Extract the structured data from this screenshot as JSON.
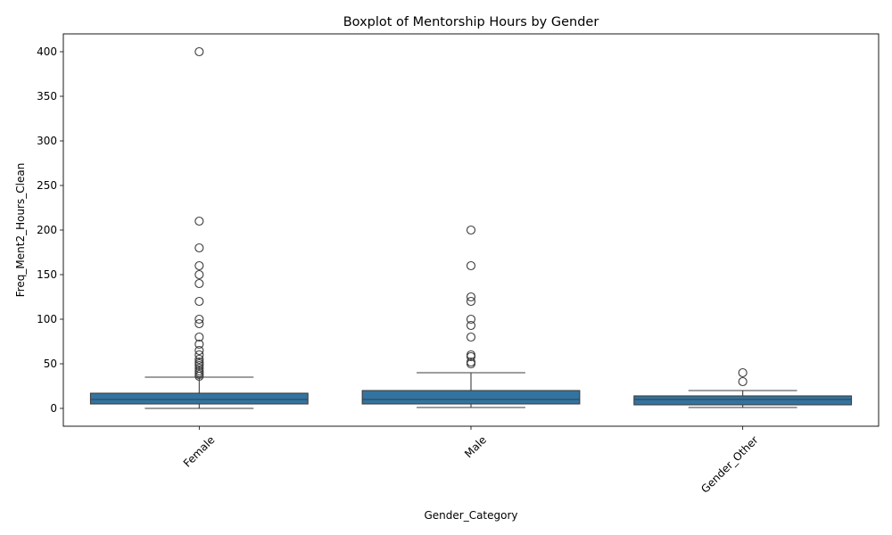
{
  "chart_data": {
    "type": "boxplot",
    "title": "Boxplot of Mentorship Hours by Gender",
    "xlabel": "Gender_Category",
    "ylabel": "Freq_Ment2_Hours_Clean",
    "ylim": [
      -20,
      420
    ],
    "yticks": [
      0,
      50,
      100,
      150,
      200,
      250,
      300,
      350,
      400
    ],
    "box_color": "#3274a1",
    "categories": [
      "Female",
      "Male",
      "Gender_Other"
    ],
    "series": [
      {
        "name": "Female",
        "min": 0,
        "q1": 5,
        "median": 10,
        "q3": 17,
        "max": 35,
        "outliers": [
          36,
          38,
          40,
          42,
          45,
          48,
          50,
          52,
          55,
          60,
          65,
          72,
          80,
          95,
          100,
          120,
          140,
          150,
          160,
          180,
          210,
          400
        ]
      },
      {
        "name": "Male",
        "min": 1,
        "q1": 5,
        "median": 10,
        "q3": 20,
        "max": 40,
        "outliers": [
          50,
          52,
          58,
          60,
          80,
          93,
          100,
          120,
          125,
          160,
          200
        ]
      },
      {
        "name": "Gender_Other",
        "min": 1,
        "q1": 4,
        "median": 10,
        "q3": 14,
        "max": 20,
        "outliers": [
          30,
          40
        ]
      }
    ]
  }
}
